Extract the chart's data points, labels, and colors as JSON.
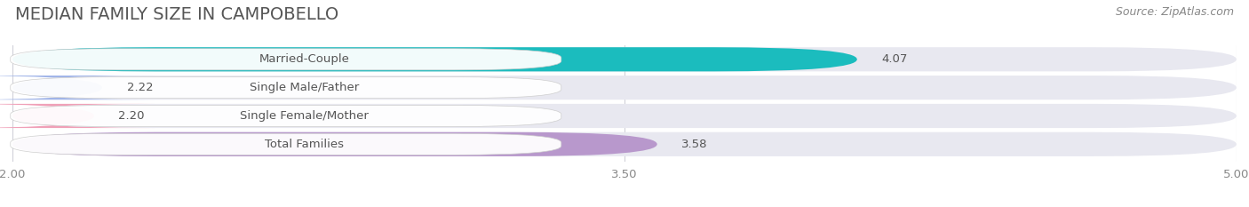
{
  "title": "MEDIAN FAMILY SIZE IN CAMPOBELLO",
  "source": "Source: ZipAtlas.com",
  "categories": [
    "Married-Couple",
    "Single Male/Father",
    "Single Female/Mother",
    "Total Families"
  ],
  "values": [
    4.07,
    2.22,
    2.2,
    3.58
  ],
  "bar_colors": [
    "#1bbcbe",
    "#a0b4e8",
    "#f0a0b8",
    "#b898cc"
  ],
  "xlim": [
    2.0,
    5.0
  ],
  "xticks": [
    2.0,
    3.5,
    5.0
  ],
  "xticklabels": [
    "2.00",
    "3.50",
    "5.00"
  ],
  "background_color": "#ffffff",
  "bar_bg_color": "#e8e8f0",
  "title_fontsize": 14,
  "label_fontsize": 9.5,
  "value_fontsize": 9.5,
  "source_fontsize": 9
}
